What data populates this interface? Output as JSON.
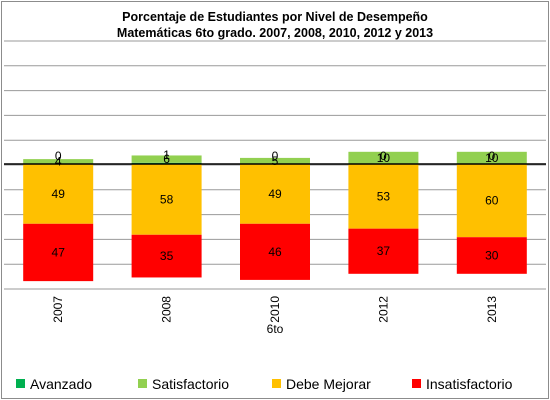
{
  "chart_data": {
    "type": "bar",
    "stacked": true,
    "title": "Porcentaje de Estudiantes por Nivel de Desempeño",
    "subtitle": "Matemáticas 6to grado. 2007, 2008, 2010, 2012 y 2013",
    "xlabel": "6to",
    "categories": [
      "2007",
      "2008",
      "2010",
      "2012",
      "2013"
    ],
    "grid": true,
    "legend_position": "bottom",
    "series": [
      {
        "name": "Avanzado",
        "color": "#00b050",
        "values": [
          0,
          1,
          0,
          0,
          0
        ],
        "direction": "up"
      },
      {
        "name": "Satisfactorio",
        "color": "#92d050",
        "values": [
          4,
          6,
          5,
          10,
          10
        ],
        "direction": "up"
      },
      {
        "name": "Debe Mejorar",
        "color": "#ffc000",
        "values": [
          49,
          58,
          49,
          53,
          60
        ],
        "direction": "down"
      },
      {
        "name": "Insatisfactorio",
        "color": "#ff0000",
        "values": [
          47,
          35,
          46,
          37,
          30
        ],
        "direction": "down"
      }
    ]
  }
}
